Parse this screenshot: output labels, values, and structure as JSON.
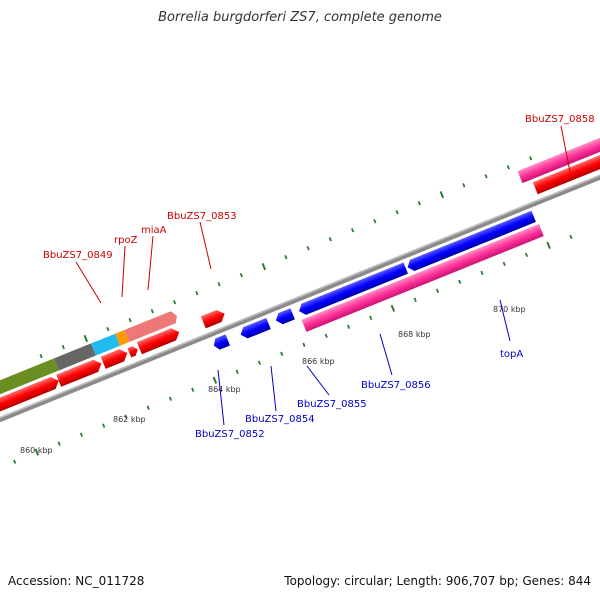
{
  "title": "Borrelia burgdorferi ZS7, complete genome",
  "footer": {
    "accession": "Accession: NC_011728",
    "summary": "Topology: circular; Length: 906,707 bp; Genes: 844"
  },
  "colors": {
    "backbone": "#808080",
    "forward_label": "#cc0000",
    "reverse_label": "#0000cc",
    "tick": "#2e7d32",
    "red_gene": "#ff0000",
    "blue_gene": "#0000ff",
    "pink_gene": "#ff3399",
    "olive_gene": "#6b8e23",
    "gray_gene": "#666666",
    "cyan_gene": "#22bbee",
    "orange_gene": "#ff9900",
    "salmon_gene": "#ee7777"
  },
  "scale_labels": [
    "860 kbp",
    "862 kbp",
    "864 kbp",
    "866 kbp",
    "868 kbp",
    "870 kbp"
  ],
  "forward_labels": [
    "BbuZS7_0849",
    "rpoZ",
    "miaA",
    "BbuZS7_0853",
    "BbuZS7_0858"
  ],
  "reverse_labels": [
    "BbuZS7_0852",
    "BbuZS7_0854",
    "BbuZS7_0855",
    "BbuZS7_0856",
    "topA"
  ]
}
